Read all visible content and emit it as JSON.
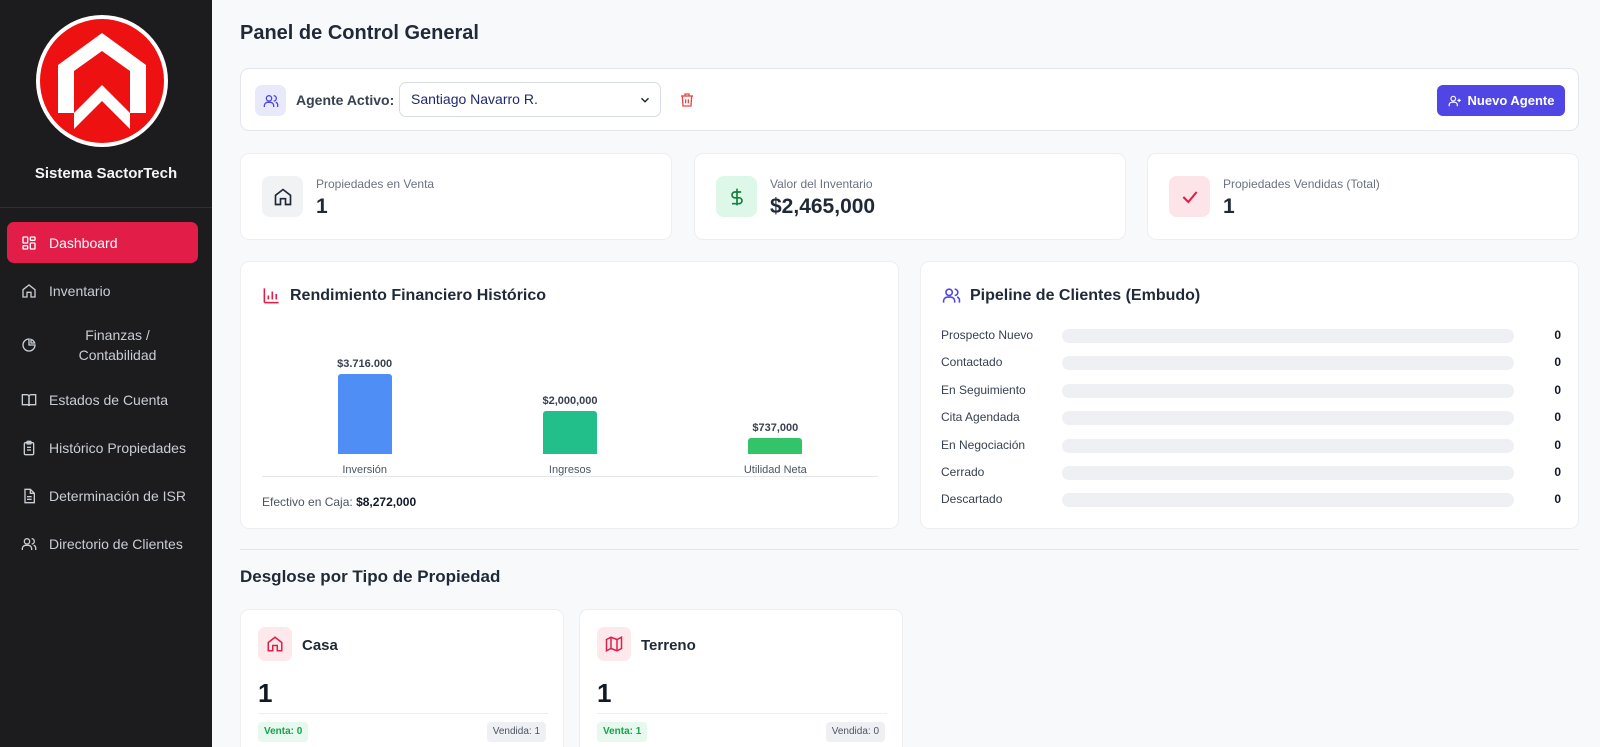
{
  "sidebar": {
    "brand": "Sistema SactorTech",
    "items": [
      {
        "label": "Dashboard",
        "icon": "dashboard-icon",
        "active": true
      },
      {
        "label": "Inventario",
        "icon": "home-icon"
      },
      {
        "label": "Finanzas / Contabilidad",
        "icon": "pie-chart-icon"
      },
      {
        "label": "Estados de Cuenta",
        "icon": "book-icon"
      },
      {
        "label": "Histórico Propiedades",
        "icon": "clipboard-icon"
      },
      {
        "label": "Determinación de ISR",
        "icon": "document-icon"
      },
      {
        "label": "Directorio de Clientes",
        "icon": "users-icon"
      }
    ]
  },
  "header": {
    "title": "Panel de Control General"
  },
  "agent": {
    "label": "Agente Activo:",
    "selected": "Santiago Navarro R.",
    "new_button": "Nuevo Agente"
  },
  "stats": [
    {
      "label": "Propiedades en Venta",
      "value": "1",
      "icon": "home-icon"
    },
    {
      "label": "Valor del Inventario",
      "value": "$2,465,000",
      "icon": "dollar-icon"
    },
    {
      "label": "Propiedades Vendidas (Total)",
      "value": "1",
      "icon": "check-icon"
    }
  ],
  "financial": {
    "title": "Rendimiento Financiero Histórico",
    "cash_label": "Efectivo en Caja:",
    "cash_value": "$8,272,000"
  },
  "chart_data": {
    "type": "bar",
    "categories": [
      "Inversión",
      "Ingresos",
      "Utilidad Neta"
    ],
    "values": [
      3716000,
      2000000,
      737000
    ],
    "value_labels": [
      "$3.716.000",
      "$2,000,000",
      "$737,000"
    ],
    "colors": [
      "#4f8ef5",
      "#22bf8a",
      "#33c46a"
    ],
    "title": "Rendimiento Financiero Histórico",
    "grid": false
  },
  "pipeline": {
    "title": "Pipeline de Clientes (Embudo)",
    "stages": [
      {
        "name": "Prospecto Nuevo",
        "count": "0"
      },
      {
        "name": "Contactado",
        "count": "0"
      },
      {
        "name": "En Seguimiento",
        "count": "0"
      },
      {
        "name": "Cita Agendada",
        "count": "0"
      },
      {
        "name": "En Negociación",
        "count": "0"
      },
      {
        "name": "Cerrado",
        "count": "0"
      },
      {
        "name": "Descartado",
        "count": "0"
      }
    ]
  },
  "breakdown": {
    "title": "Desglose por Tipo de Propiedad",
    "types": [
      {
        "name": "Casa",
        "count": "1",
        "sale": "Venta: 0",
        "sold": "Vendida: 1",
        "icon": "home-icon"
      },
      {
        "name": "Terreno",
        "count": "1",
        "sale": "Venta: 1",
        "sold": "Vendida: 0",
        "icon": "map-icon"
      }
    ]
  },
  "colors": {
    "accent": "#e11d48",
    "primary": "#4f46e5",
    "sidebar_bg": "#1c1c1f"
  }
}
